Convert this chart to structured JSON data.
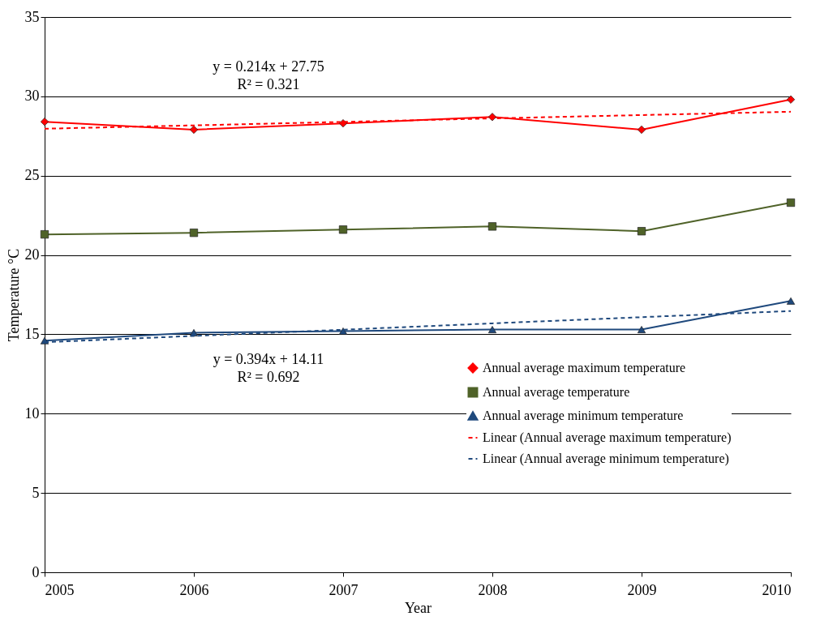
{
  "chart_data": {
    "type": "line",
    "xlabel": "Year",
    "ylabel": "Temperature °C",
    "x": [
      2005,
      2006,
      2007,
      2008,
      2009,
      2010
    ],
    "xlim": [
      2005,
      2010
    ],
    "xticks": [
      2005,
      2006,
      2007,
      2008,
      2009,
      2010
    ],
    "ylim": [
      0,
      35
    ],
    "yticks": [
      0,
      5,
      10,
      15,
      20,
      25,
      30,
      35
    ],
    "grid": "y",
    "legend": "right",
    "series": [
      {
        "name": "Annual average maximum temperature",
        "marker": "diamond",
        "line_style": "solid",
        "color": "#ff0000",
        "values": [
          28.4,
          27.9,
          28.3,
          28.7,
          27.9,
          29.8
        ]
      },
      {
        "name": "Annual average temperature",
        "marker": "square",
        "line_style": "solid",
        "color": "#4f6228",
        "values": [
          21.3,
          21.4,
          21.6,
          21.8,
          21.5,
          23.3
        ]
      },
      {
        "name": "Annual average minimum temperature",
        "marker": "triangle",
        "line_style": "solid",
        "color": "#1f497d",
        "values": [
          14.6,
          15.1,
          15.2,
          15.3,
          15.3,
          17.1
        ]
      },
      {
        "name": "Linear (Annual average maximum temperature)",
        "marker": "none",
        "line_style": "dashed",
        "color": "#ff0000",
        "values": [
          27.96,
          28.17,
          28.39,
          28.61,
          28.82,
          29.03
        ]
      },
      {
        "name": "Linear (Annual average minimum temperature)",
        "marker": "none",
        "line_style": "dashed",
        "color": "#1f497d",
        "values": [
          14.5,
          14.9,
          15.29,
          15.69,
          16.08,
          16.47
        ]
      }
    ],
    "annotations": [
      "y = 0.214x + 27.75",
      "R² = 0.321",
      "y = 0.394x + 14.11",
      "R² = 0.692"
    ]
  }
}
